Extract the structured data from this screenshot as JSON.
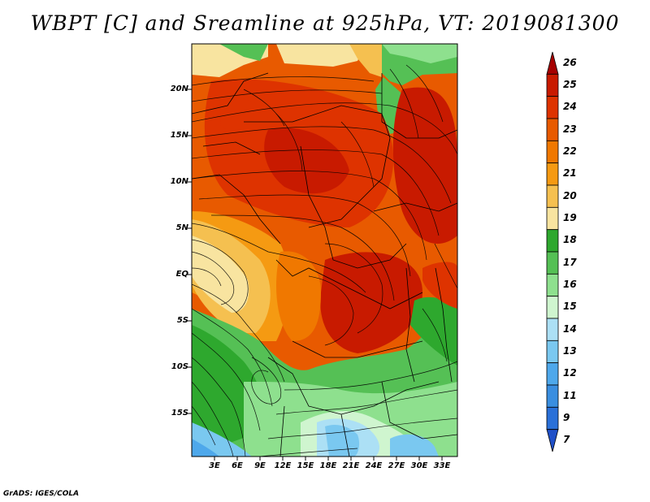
{
  "title": "WBPT [C] and Sreamline at 925hPa, VT: 2019081300",
  "lat_labels": [
    "20N",
    "15N",
    "10N",
    "5N",
    "EQ",
    "5S",
    "10S",
    "15S"
  ],
  "lon_labels": [
    "3E",
    "6E",
    "9E",
    "12E",
    "15E",
    "18E",
    "21E",
    "24E",
    "27E",
    "30E",
    "33E"
  ],
  "colorbar": {
    "labels": [
      "26",
      "25",
      "24",
      "23",
      "22",
      "21",
      "20",
      "19",
      "18",
      "17",
      "16",
      "15",
      "14",
      "13",
      "12",
      "11",
      "9",
      "7"
    ],
    "colors": [
      "#a50000",
      "#c81a00",
      "#de3300",
      "#e85a00",
      "#f07800",
      "#f59a12",
      "#f5c050",
      "#f8e4a0",
      "#2ea82e",
      "#55c055",
      "#8ee08e",
      "#cff5cf",
      "#ace0f5",
      "#7ac8f0",
      "#4ea8eb",
      "#3a8ee0",
      "#2a70d8",
      "#2050c8"
    ]
  },
  "credit": "GrADS: IGES/COLA"
}
